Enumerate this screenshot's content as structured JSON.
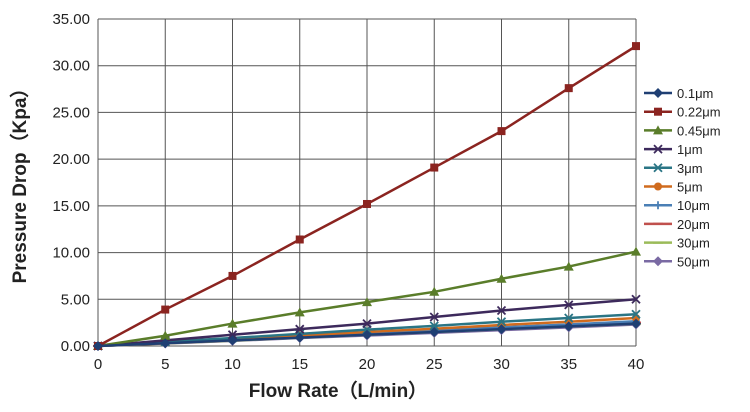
{
  "chart_data": {
    "type": "line",
    "title": "",
    "xlabel": "Flow Rate（L/min）",
    "ylabel": "Pressure Drop（Kpa）",
    "x": [
      0,
      5,
      10,
      15,
      20,
      25,
      30,
      35,
      40
    ],
    "xticks": [
      "0",
      "5",
      "10",
      "15",
      "20",
      "25",
      "30",
      "35",
      "40"
    ],
    "yticks": [
      "0.00",
      "5.00",
      "10.00",
      "15.00",
      "20.00",
      "25.00",
      "30.00",
      "35.00"
    ],
    "xlim": [
      0,
      40
    ],
    "ylim": [
      0,
      35
    ],
    "grid": true,
    "legend_position": "right",
    "series": [
      {
        "name": "0.1μm",
        "color": "#1f3f73",
        "marker": "diamond",
        "values": [
          0,
          0.3,
          0.6,
          0.9,
          1.2,
          1.5,
          1.8,
          2.1,
          2.4
        ]
      },
      {
        "name": "0.22μm",
        "color": "#8b2420",
        "marker": "square",
        "values": [
          0,
          3.9,
          7.5,
          11.4,
          15.2,
          19.1,
          23.0,
          27.6,
          32.1
        ]
      },
      {
        "name": "0.45μm",
        "color": "#5a7d2a",
        "marker": "triangle",
        "values": [
          0,
          1.1,
          2.4,
          3.6,
          4.7,
          5.8,
          7.2,
          8.5,
          10.1
        ]
      },
      {
        "name": "1μm",
        "color": "#3d2a5c",
        "marker": "x",
        "values": [
          0,
          0.6,
          1.2,
          1.8,
          2.4,
          3.1,
          3.8,
          4.4,
          5.0
        ]
      },
      {
        "name": "3μm",
        "color": "#2a7585",
        "marker": "x",
        "values": [
          0,
          0.45,
          0.85,
          1.3,
          1.75,
          2.15,
          2.6,
          3.0,
          3.4
        ]
      },
      {
        "name": "5μm",
        "color": "#d06b1e",
        "marker": "circle",
        "values": [
          0,
          0.35,
          0.75,
          1.1,
          1.5,
          1.85,
          2.25,
          2.6,
          3.0
        ]
      },
      {
        "name": "10μm",
        "color": "#4a7fb5",
        "marker": "plus",
        "values": [
          0,
          0.32,
          0.65,
          1.0,
          1.3,
          1.65,
          2.0,
          2.3,
          2.65
        ]
      },
      {
        "name": "20μm",
        "color": "#c0504d",
        "marker": "dash",
        "values": [
          0,
          0.3,
          0.62,
          0.95,
          1.25,
          1.55,
          1.9,
          2.2,
          2.5
        ]
      },
      {
        "name": "30μm",
        "color": "#9bbb59",
        "marker": "dash",
        "values": [
          0,
          0.28,
          0.58,
          0.9,
          1.2,
          1.5,
          1.8,
          2.1,
          2.4
        ]
      },
      {
        "name": "50μm",
        "color": "#7a6aa3",
        "marker": "diamond",
        "values": [
          0,
          0.27,
          0.55,
          0.85,
          1.12,
          1.4,
          1.7,
          2.0,
          2.3
        ]
      }
    ]
  }
}
